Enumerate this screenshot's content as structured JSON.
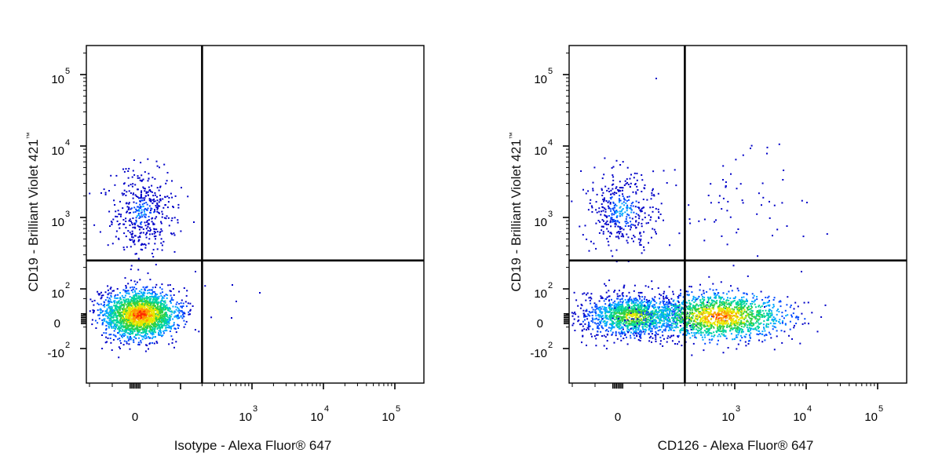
{
  "chart_data": [
    {
      "type": "scatter",
      "style": "pseudocolor-density-dot-plot",
      "axes_scale": "biexponential",
      "xlabel": "Isotype - Alexa Fluor® 647",
      "ylabel_main": "CD19 - Brilliant Violet 421",
      "ylabel_trademark": "™",
      "x_ticks": [
        {
          "base": "0",
          "exp": ""
        },
        {
          "base": "10",
          "exp": "3"
        },
        {
          "base": "10",
          "exp": "4"
        },
        {
          "base": "10",
          "exp": "5"
        }
      ],
      "y_ticks": [
        {
          "base": "10",
          "exp": "5"
        },
        {
          "base": "10",
          "exp": "4"
        },
        {
          "base": "10",
          "exp": "3"
        },
        {
          "base": "10",
          "exp": "2"
        },
        {
          "base": "0",
          "exp": ""
        },
        {
          "base": "-10",
          "exp": "2"
        }
      ],
      "gate": {
        "x": 200,
        "y": 250
      },
      "populations": [
        {
          "name": "",
          "x_center": 0,
          "y_center": 0,
          "x_spread": "-100 to 150",
          "y_spread": "-120 to 150",
          "density": "high"
        },
        {
          "name": "",
          "x_center": 0,
          "y_center": 1200,
          "x_spread": "-80 to 250",
          "y_spread": "300 to 5000",
          "density": "low"
        }
      ],
      "density_colormap": [
        "#0000cc",
        "#00bfff",
        "#00cc66",
        "#ffee00",
        "#ff3300"
      ]
    },
    {
      "type": "scatter",
      "style": "pseudocolor-density-dot-plot",
      "axes_scale": "biexponential",
      "xlabel": "CD126 - Alexa Fluor® 647",
      "ylabel_main": "CD19 - Brilliant Violet 421",
      "ylabel_trademark": "™",
      "x_ticks": [
        {
          "base": "0",
          "exp": ""
        },
        {
          "base": "10",
          "exp": "3"
        },
        {
          "base": "10",
          "exp": "4"
        },
        {
          "base": "10",
          "exp": "5"
        }
      ],
      "y_ticks": [
        {
          "base": "10",
          "exp": "5"
        },
        {
          "base": "10",
          "exp": "4"
        },
        {
          "base": "10",
          "exp": "3"
        },
        {
          "base": "10",
          "exp": "2"
        },
        {
          "base": "0",
          "exp": ""
        },
        {
          "base": "-10",
          "exp": "2"
        }
      ],
      "gate": {
        "x": 200,
        "y": 250
      },
      "populations": [
        {
          "name": "",
          "x_center": 300,
          "y_center": 0,
          "x_spread": "-150 to 900",
          "y_spread": "-120 to 150",
          "density": "high"
        },
        {
          "name": "",
          "x_center": 0,
          "y_center": 1300,
          "x_spread": "-150 to 900",
          "y_spread": "300 to 5000",
          "density": "low"
        }
      ],
      "density_colormap": [
        "#0000cc",
        "#00bfff",
        "#00cc66",
        "#ffee00",
        "#ff3300"
      ]
    }
  ]
}
